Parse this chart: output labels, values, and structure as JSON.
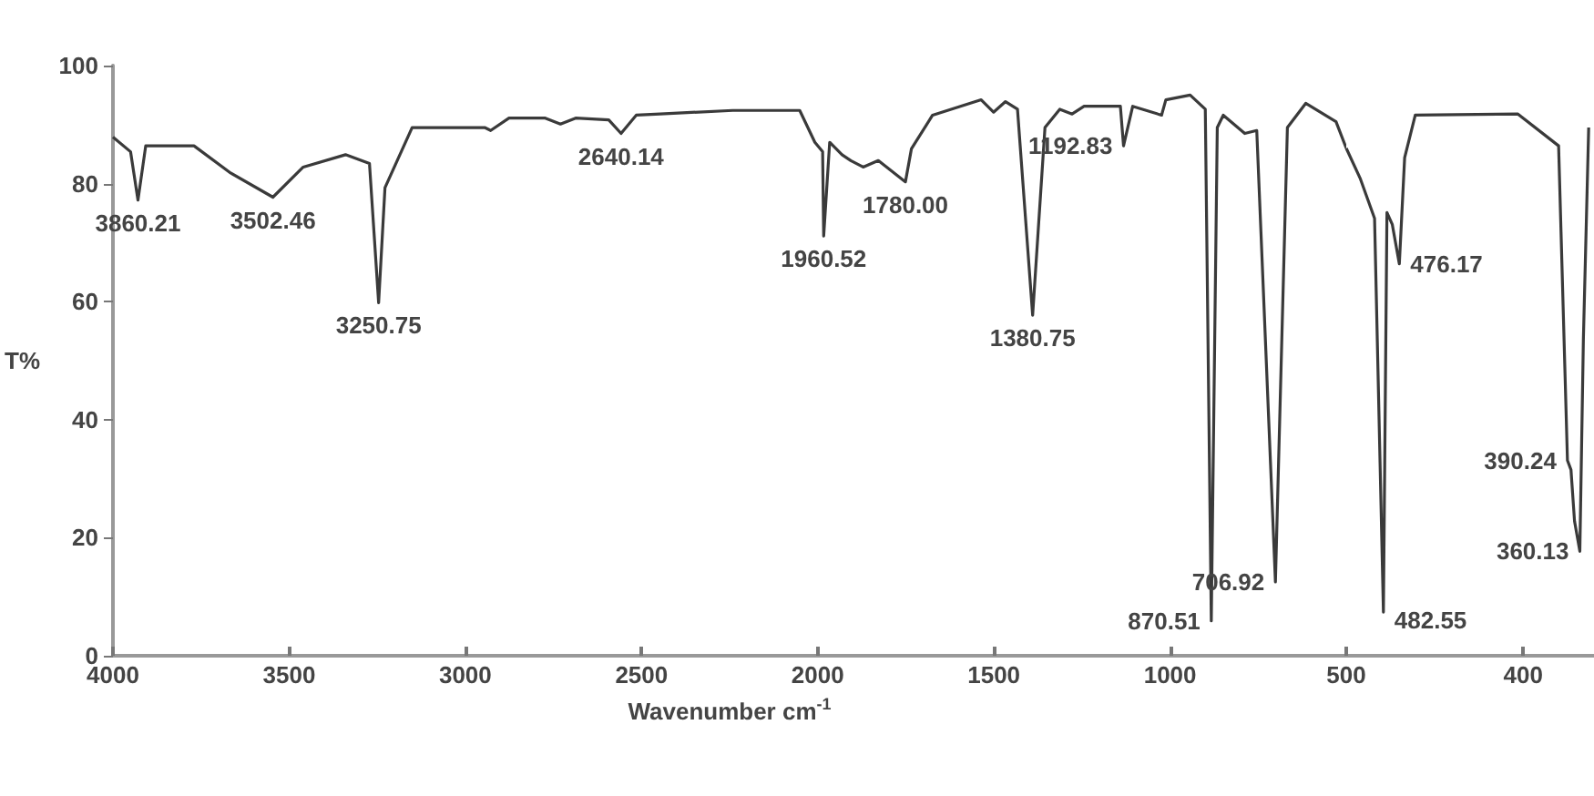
{
  "chart_data": [
    {
      "type": "line",
      "xlabel": "Wavenumber cm$^{-1}$",
      "ylabel": "T%",
      "xlim": [
        4000,
        500
      ],
      "xticks": [
        4000,
        3500,
        3000,
        2500,
        2000,
        1500,
        1000
      ],
      "ylim": [
        0,
        100
      ],
      "yticks": [
        0,
        20,
        40,
        60,
        80,
        100
      ],
      "grid": false,
      "marker": "none",
      "line_style": "solid",
      "series": [
        {
          "color": "#3a3a3a",
          "x": [
            4000,
            3950,
            3929,
            3907,
            3770,
            3666,
            3546,
            3460,
            3340,
            3272,
            3246,
            3228,
            3151,
            2945,
            2928,
            2876,
            2773,
            2730,
            2687,
            2593,
            2558,
            2515,
            2447,
            2241,
            2051,
            2008,
            1986,
            1983,
            1966,
            1931,
            1906,
            1871,
            1828,
            1751,
            1734,
            1674,
            1536,
            1501,
            1467,
            1433,
            1390,
            1355,
            1313,
            1278,
            1244,
            1141,
            1132,
            1106,
            1024,
            1012,
            943,
            900,
            883,
            866,
            849,
            788,
            754,
            701,
            667,
            615,
            529,
            500
          ],
          "values": [
            87.9,
            85.4,
            77.2,
            86.4,
            86.4,
            81.8,
            77.7,
            82.8,
            84.9,
            83.4,
            59.8,
            79.3,
            89.5,
            89.5,
            89.0,
            91.1,
            91.1,
            90.1,
            91.1,
            90.8,
            88.5,
            91.6,
            91.8,
            92.4,
            92.4,
            87.0,
            85.4,
            71.1,
            87.0,
            84.9,
            83.9,
            82.8,
            83.9,
            80.3,
            85.9,
            91.6,
            94.2,
            92.1,
            93.9,
            92.6,
            57.7,
            89.5,
            92.6,
            91.8,
            93.1,
            93.1,
            86.4,
            93.1,
            91.6,
            94.2,
            95.0,
            92.6,
            5.9,
            89.5,
            91.6,
            88.5,
            89.0,
            12.5,
            89.5,
            93.6,
            90.5,
            86.0
          ]
        }
      ],
      "annotations": [
        {
          "text": "3860.21",
          "x": 3929,
          "y": 77.2
        },
        {
          "text": "3502.46",
          "x": 3546,
          "y": 77.7
        },
        {
          "text": "3250.75",
          "x": 3246,
          "y": 59.8
        },
        {
          "text": "2640.14",
          "x": 2558,
          "y": 88.5
        },
        {
          "text": "1960.52",
          "x": 1983,
          "y": 71.1
        },
        {
          "text": "1780.00",
          "x": 1751,
          "y": 80.3
        },
        {
          "text": "1380.75",
          "x": 1390,
          "y": 57.7
        },
        {
          "text": "1192.83",
          "x": 1132,
          "y": 86.4
        },
        {
          "text": "870.51",
          "x": 883,
          "y": 5.9
        },
        {
          "text": "706.92",
          "x": 701,
          "y": 12.5
        }
      ]
    },
    {
      "type": "line",
      "xlim": [
        500,
        360
      ],
      "xticks": [
        500,
        400
      ],
      "ylim": [
        0,
        100
      ],
      "tick_labels": "x",
      "grid": false,
      "marker": "none",
      "line_style": "solid",
      "series": [
        {
          "color": "#3a3a3a",
          "x": [
            500,
            492,
            484,
            479,
            477,
            474,
            470,
            467,
            461,
            403,
            380,
            375,
            373,
            371,
            368,
            366,
            363
          ],
          "values": [
            86.0,
            80.8,
            74.1,
            7.4,
            75.1,
            73.1,
            66.4,
            84.4,
            91.6,
            91.8,
            86.4,
            33.1,
            31.5,
            22.8,
            17.7,
            53.6,
            89.5
          ]
        }
      ],
      "annotations": [
        {
          "text": "482.55",
          "x": 479,
          "y": 7.4
        },
        {
          "text": "476.17",
          "x": 470,
          "y": 66.4
        },
        {
          "text": "390.24",
          "x": 375,
          "y": 33.1
        },
        {
          "text": "360.13",
          "x": 368,
          "y": 17.7
        }
      ]
    }
  ]
}
